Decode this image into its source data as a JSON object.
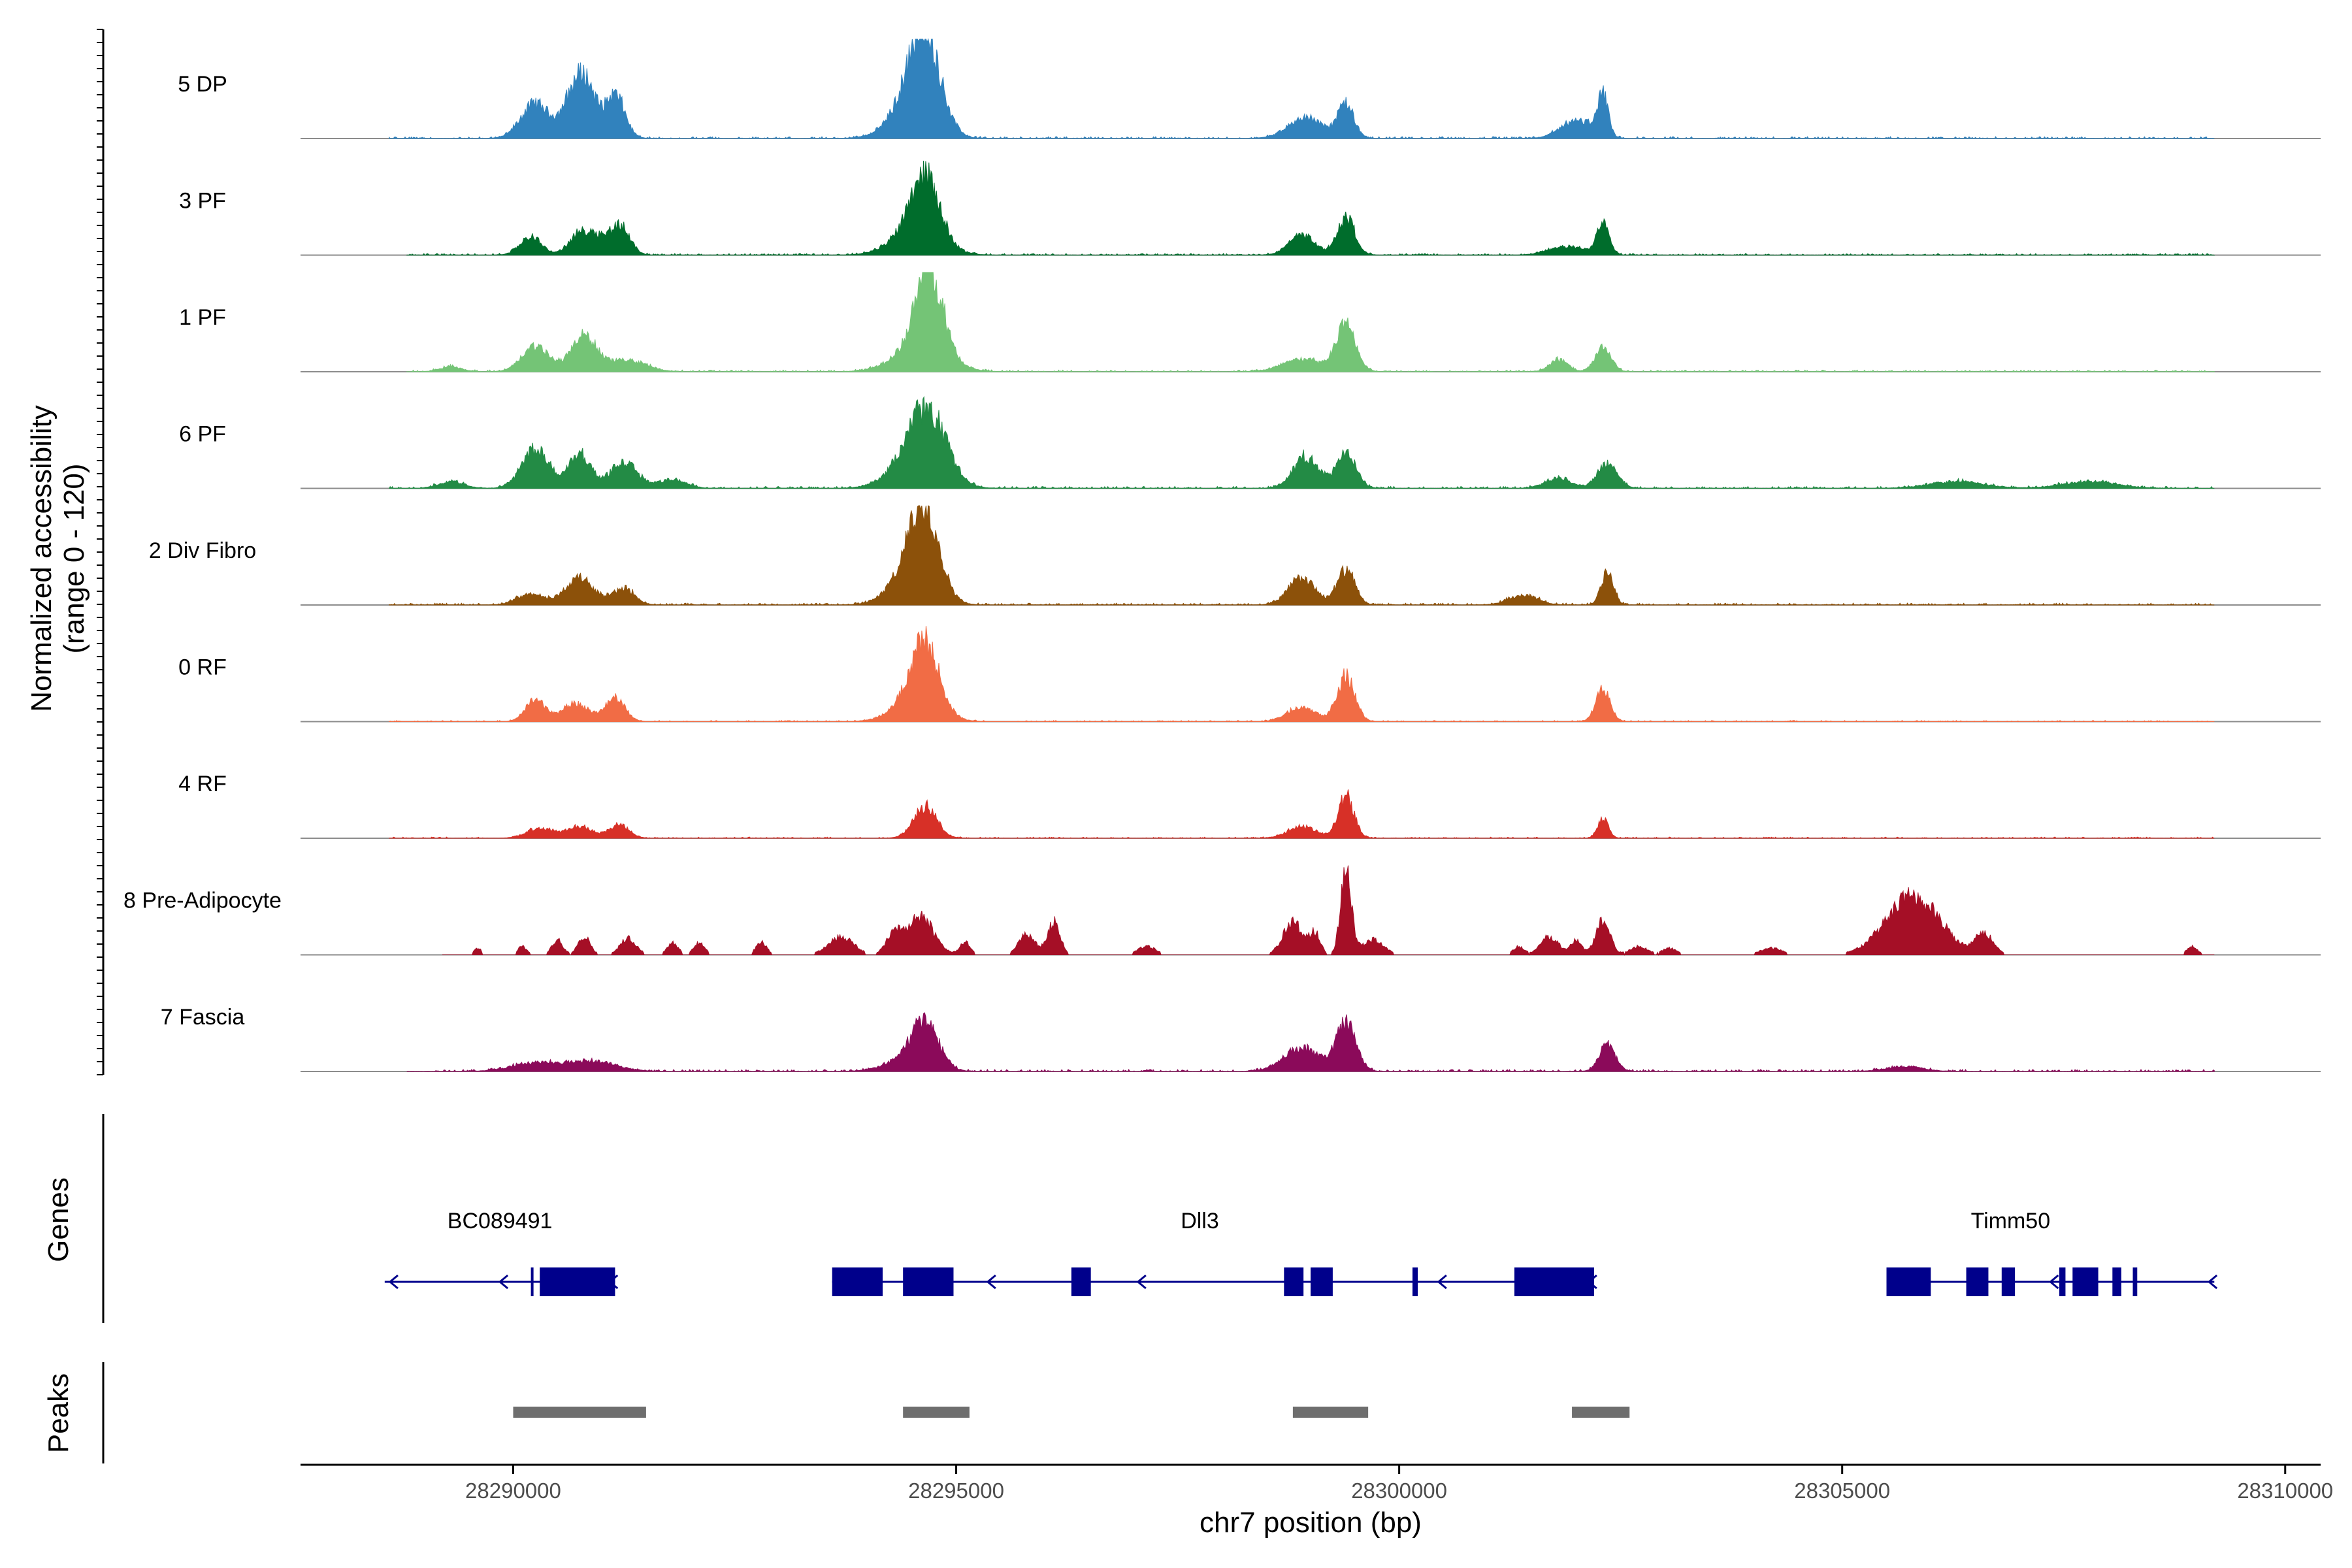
{
  "chart_data": {
    "type": "area",
    "title": "",
    "ylabel": "Normalized accessibility",
    "ylabel_range": "(range 0 - 120)",
    "xlabel": "chr7 position (bp)",
    "xlim": [
      28287600,
      28310400
    ],
    "ylim": [
      0,
      120
    ],
    "x_ticks": [
      28290000,
      28295000,
      28300000,
      28305000,
      28310000
    ],
    "x_tick_labels": [
      "28290000",
      "28295000",
      "28300000",
      "28305000",
      "28310000"
    ],
    "tracks": [
      {
        "name": "5 DP",
        "color": "#3182bd",
        "start": 28288600,
        "end": 28309200,
        "peaks": [
          [
            28290250,
            42,
            160
          ],
          [
            28290700,
            55,
            130
          ],
          [
            28290850,
            40,
            110
          ],
          [
            28291150,
            52,
            110
          ],
          [
            28294650,
            100,
            170
          ],
          [
            28294500,
            40,
            240
          ],
          [
            28298950,
            25,
            200
          ],
          [
            28299400,
            40,
            90
          ],
          [
            28301900,
            12,
            150
          ],
          [
            28302100,
            15,
            140
          ],
          [
            28302300,
            48,
            60
          ]
        ],
        "noise": 2.2
      },
      {
        "name": "3 PF",
        "color": "#006d2c",
        "start": 28288800,
        "end": 28309200,
        "peaks": [
          [
            28290200,
            22,
            120
          ],
          [
            28290750,
            25,
            120
          ],
          [
            28290950,
            18,
            100
          ],
          [
            28291200,
            36,
            110
          ],
          [
            28294650,
            70,
            160
          ],
          [
            28294550,
            30,
            260
          ],
          [
            28298900,
            25,
            140
          ],
          [
            28299400,
            45,
            100
          ],
          [
            28301900,
            10,
            200
          ],
          [
            28302300,
            40,
            70
          ]
        ],
        "noise": 2.0
      },
      {
        "name": "1 PF",
        "color": "#74c476",
        "start": 28288800,
        "end": 28309200,
        "peaks": [
          [
            28289300,
            6,
            120
          ],
          [
            28290250,
            30,
            150
          ],
          [
            28290800,
            42,
            150
          ],
          [
            28291300,
            14,
            200
          ],
          [
            28294700,
            95,
            150
          ],
          [
            28294600,
            30,
            280
          ],
          [
            28298900,
            15,
            220
          ],
          [
            28299400,
            55,
            110
          ],
          [
            28301800,
            14,
            100
          ],
          [
            28302300,
            28,
            90
          ]
        ],
        "noise": 2.0
      },
      {
        "name": "6 PF",
        "color": "#238b45",
        "start": 28288600,
        "end": 28309200,
        "peaks": [
          [
            28289300,
            8,
            140
          ],
          [
            28290250,
            48,
            150
          ],
          [
            28290750,
            42,
            120
          ],
          [
            28291250,
            30,
            160
          ],
          [
            28291800,
            10,
            150
          ],
          [
            28294700,
            62,
            200
          ],
          [
            28294550,
            40,
            260
          ],
          [
            28298950,
            38,
            140
          ],
          [
            28299400,
            42,
            110
          ],
          [
            28301800,
            12,
            150
          ],
          [
            28302350,
            30,
            110
          ],
          [
            28306300,
            8,
            300
          ],
          [
            28307800,
            8,
            300
          ]
        ],
        "noise": 2.4
      },
      {
        "name": "2 Div Fibro",
        "color": "#8c510a",
        "start": 28288600,
        "end": 28309200,
        "peaks": [
          [
            28290200,
            14,
            150
          ],
          [
            28290750,
            32,
            160
          ],
          [
            28291250,
            20,
            120
          ],
          [
            28294650,
            90,
            160
          ],
          [
            28294500,
            40,
            230
          ],
          [
            28298900,
            32,
            150
          ],
          [
            28299400,
            42,
            100
          ],
          [
            28301400,
            12,
            160
          ],
          [
            28302350,
            38,
            70
          ]
        ],
        "noise": 2.2
      },
      {
        "name": "0 RF",
        "color": "#f16c45",
        "start": 28288600,
        "end": 28309200,
        "peaks": [
          [
            28290250,
            26,
            110
          ],
          [
            28290700,
            22,
            150
          ],
          [
            28291150,
            28,
            110
          ],
          [
            28294650,
            72,
            150
          ],
          [
            28294550,
            28,
            240
          ],
          [
            28298900,
            18,
            160
          ],
          [
            28299400,
            55,
            100
          ],
          [
            28302300,
            38,
            80
          ]
        ],
        "noise": 1.4
      },
      {
        "name": "4 RF",
        "color": "#d73027",
        "start": 28288600,
        "end": 28309200,
        "peaks": [
          [
            28290300,
            12,
            150
          ],
          [
            28290750,
            14,
            150
          ],
          [
            28291200,
            16,
            110
          ],
          [
            28294650,
            38,
            130
          ],
          [
            28298900,
            14,
            160
          ],
          [
            28299400,
            50,
            90
          ],
          [
            28302300,
            24,
            60
          ]
        ],
        "noise": 1.4
      },
      {
        "name": "8 Pre-Adipocyte",
        "color": "#a50f26",
        "start": 28289200,
        "end": 28309200,
        "peaks": [
          [
            28289600,
            8,
            40
          ],
          [
            28290100,
            10,
            50
          ],
          [
            28290500,
            18,
            60
          ],
          [
            28290800,
            22,
            70
          ],
          [
            28291300,
            20,
            90
          ],
          [
            28291800,
            15,
            60
          ],
          [
            28292100,
            15,
            60
          ],
          [
            28292800,
            15,
            60
          ],
          [
            28293700,
            22,
            140
          ],
          [
            28294300,
            25,
            90
          ],
          [
            28294600,
            45,
            150
          ],
          [
            28295100,
            15,
            60
          ],
          [
            28295800,
            25,
            90
          ],
          [
            28296100,
            40,
            70
          ],
          [
            28297150,
            10,
            100
          ],
          [
            28298800,
            40,
            110
          ],
          [
            28299050,
            25,
            60
          ],
          [
            28299400,
            105,
            60
          ],
          [
            28299700,
            18,
            120
          ],
          [
            28301350,
            10,
            60
          ],
          [
            28301700,
            22,
            100
          ],
          [
            28302000,
            18,
            60
          ],
          [
            28302300,
            42,
            80
          ],
          [
            28302700,
            10,
            100
          ],
          [
            28303050,
            8,
            80
          ],
          [
            28304200,
            8,
            120
          ],
          [
            28305800,
            70,
            300
          ],
          [
            28306600,
            25,
            100
          ],
          [
            28308950,
            10,
            60
          ]
        ],
        "noise": 0.4
      },
      {
        "name": "7 Fascia",
        "color": "#8b0a5a",
        "start": 28288800,
        "end": 28309200,
        "peaks": [
          [
            28290250,
            10,
            260
          ],
          [
            28290900,
            12,
            260
          ],
          [
            28294650,
            52,
            150
          ],
          [
            28294450,
            14,
            240
          ],
          [
            28298900,
            28,
            200
          ],
          [
            28299400,
            60,
            110
          ],
          [
            28302350,
            32,
            90
          ],
          [
            28305700,
            6,
            200
          ]
        ],
        "noise": 2.4
      }
    ],
    "genes_panel_title": "Genes",
    "peaks_panel_title": "Peaks",
    "genes": [
      {
        "name": "BC089491",
        "strand": "-",
        "start": 28288550,
        "end": 28291150,
        "label_pos": 28289850,
        "exons": [
          [
            28290200,
            28290220
          ],
          [
            28290300,
            28291150
          ]
        ]
      },
      {
        "name": "Dll3",
        "strand": "-",
        "start": 28293600,
        "end": 28302200,
        "label_pos": 28297750,
        "exons": [
          [
            28293600,
            28294170
          ],
          [
            28294400,
            28294970
          ],
          [
            28296300,
            28296520
          ],
          [
            28298700,
            28298920
          ],
          [
            28299000,
            28299250
          ],
          [
            28300150,
            28300210
          ],
          [
            28301300,
            28302200
          ]
        ]
      },
      {
        "name": "Timm50",
        "strand": "-",
        "start": 28305500,
        "end": 28309200,
        "label_pos": 28306900,
        "exons": [
          [
            28305500,
            28306000
          ],
          [
            28306400,
            28306650
          ],
          [
            28306800,
            28306950
          ],
          [
            28307450,
            28307520
          ],
          [
            28307600,
            28307890
          ],
          [
            28308050,
            28308150
          ],
          [
            28308280,
            28308330
          ]
        ]
      }
    ],
    "peak_regions": [
      [
        28290000,
        28291500
      ],
      [
        28294400,
        28295150
      ],
      [
        28298800,
        28299650
      ],
      [
        28301950,
        28302600
      ]
    ]
  }
}
